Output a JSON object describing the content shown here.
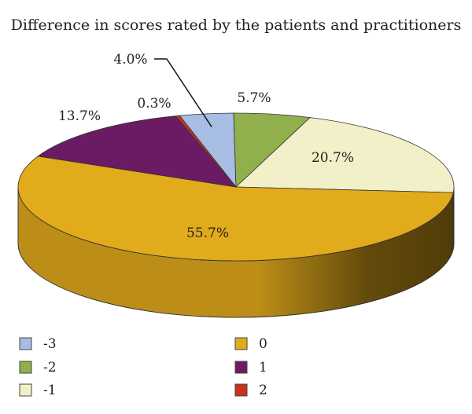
{
  "chart_data": {
    "type": "pie",
    "title": "Difference in scores rated by the patients and practitioners",
    "legend_position": "bottom",
    "slices": [
      {
        "label": "-3",
        "value": 4.0,
        "value_label": "4.0%",
        "color": "#a8bde3"
      },
      {
        "label": "-2",
        "value": 5.7,
        "value_label": "5.7%",
        "color": "#8fb04c"
      },
      {
        "label": "-1",
        "value": 20.7,
        "value_label": "20.7%",
        "color": "#f2f0c8"
      },
      {
        "label": "0",
        "value": 55.7,
        "value_label": "55.7%",
        "color": "#e2ab1b"
      },
      {
        "label": "1",
        "value": 13.7,
        "value_label": "13.7%",
        "color": "#6b1b63"
      },
      {
        "label": "2",
        "value": 0.3,
        "value_label": "0.3%",
        "color": "#c8321e"
      }
    ]
  }
}
